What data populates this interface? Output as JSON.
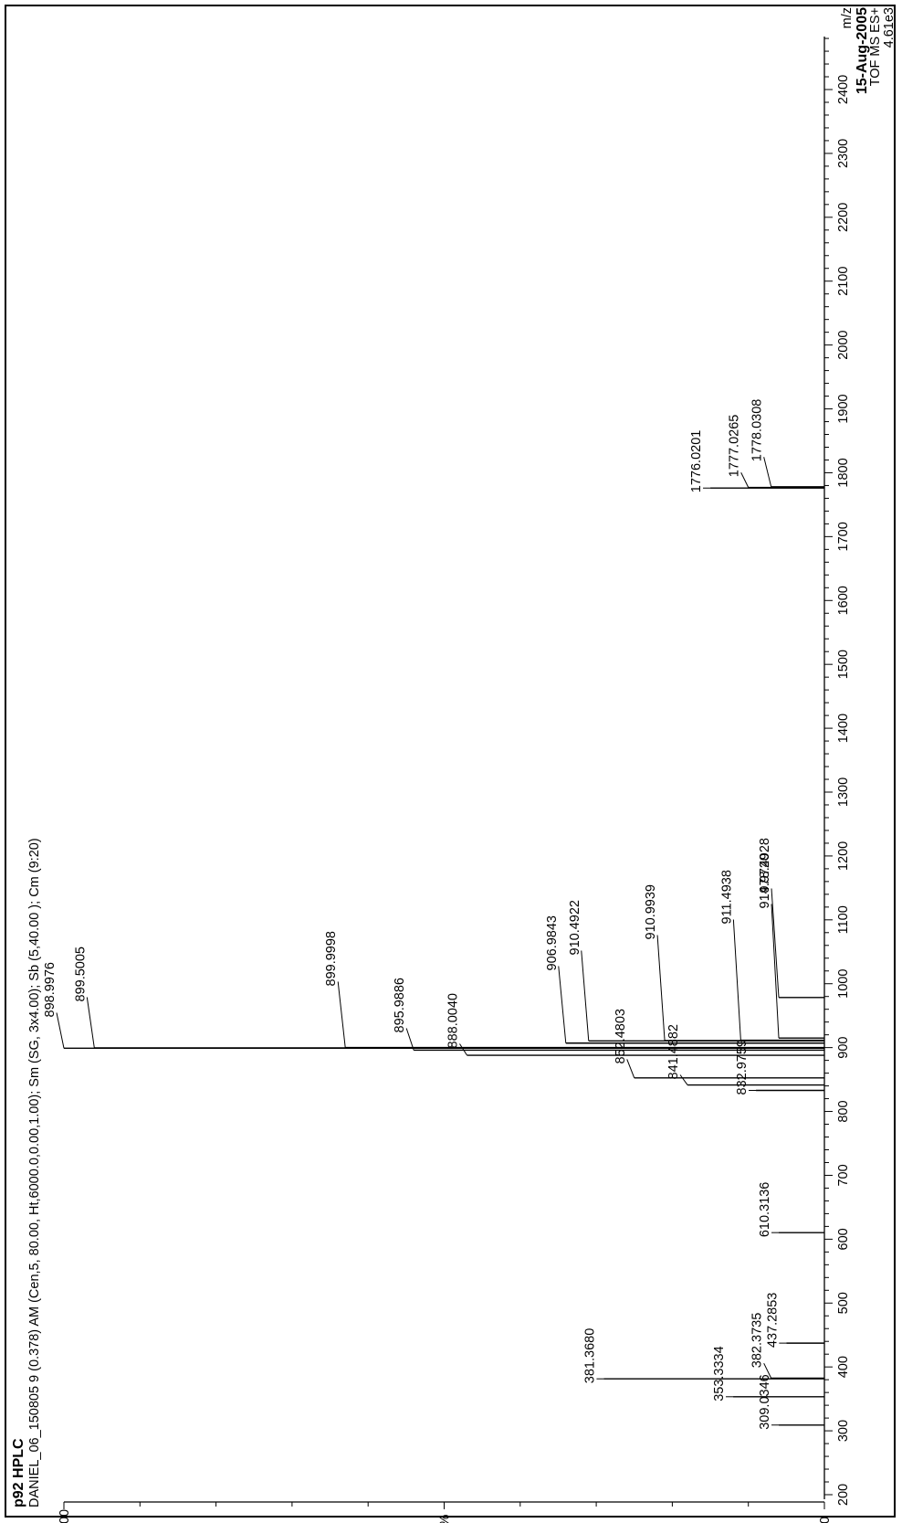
{
  "header": {
    "sample": "p92  HPLC",
    "description": "DANIEL_06_150805 9 (0.378) AM (Cen,5, 80.00, Ht,6000.0,0.00,1.00); Sm (SG, 3x4.00); Sb (5,40.00 ); Cm (9:20)",
    "date": "15-Aug-2005",
    "instrument": "TOF MS ES+",
    "intensity": "4.61e3"
  },
  "chart_data": {
    "type": "bar",
    "orientation": "rotated-90",
    "xlabel": "m/z",
    "ylabel": "%",
    "xlim": [
      200,
      2500
    ],
    "ylim": [
      0,
      100
    ],
    "xticks": [
      200,
      300,
      400,
      500,
      600,
      700,
      800,
      900,
      1000,
      1100,
      1200,
      1300,
      1400,
      1500,
      1600,
      1700,
      1800,
      1900,
      2000,
      2100,
      2200,
      2300,
      2400
    ],
    "yticks": [
      {
        "value": 0,
        "label": "0"
      },
      {
        "value": 50,
        "label": "%"
      },
      {
        "value": 100,
        "label": "100"
      }
    ],
    "labeled_peaks": [
      {
        "mz": "309.0346",
        "x": 309.0346,
        "y": 6
      },
      {
        "mz": "353.3334",
        "x": 353.3334,
        "y": 12
      },
      {
        "mz": "381.3680",
        "x": 381.368,
        "y": 29
      },
      {
        "mz": "382.3735",
        "x": 382.3735,
        "y": 7
      },
      {
        "mz": "437.2853",
        "x": 437.2853,
        "y": 5
      },
      {
        "mz": "610.3136",
        "x": 610.3136,
        "y": 6
      },
      {
        "mz": "832.9759",
        "x": 832.9759,
        "y": 9
      },
      {
        "mz": "841.4882",
        "x": 841.4882,
        "y": 18
      },
      {
        "mz": "852.4803",
        "x": 852.4803,
        "y": 25
      },
      {
        "mz": "888.0040",
        "x": 888.004,
        "y": 47
      },
      {
        "mz": "895.9886",
        "x": 895.9886,
        "y": 54
      },
      {
        "mz": "898.9976",
        "x": 898.9976,
        "y": 100
      },
      {
        "mz": "899.5005",
        "x": 899.5005,
        "y": 96
      },
      {
        "mz": "899.9998",
        "x": 899.9998,
        "y": 63
      },
      {
        "mz": "906.9843",
        "x": 906.9843,
        "y": 34
      },
      {
        "mz": "910.4922",
        "x": 910.4922,
        "y": 31
      },
      {
        "mz": "910.9939",
        "x": 910.9939,
        "y": 21
      },
      {
        "mz": "911.4938",
        "x": 911.4938,
        "y": 11
      },
      {
        "mz": "914.9720",
        "x": 914.972,
        "y": 6
      },
      {
        "mz": "978.4928",
        "x": 978.4928,
        "y": 6
      },
      {
        "mz": "1776.0201",
        "x": 1776.0201,
        "y": 15
      },
      {
        "mz": "1777.0265",
        "x": 1777.0265,
        "y": 10
      },
      {
        "mz": "1778.0308",
        "x": 1778.0308,
        "y": 7
      }
    ]
  }
}
